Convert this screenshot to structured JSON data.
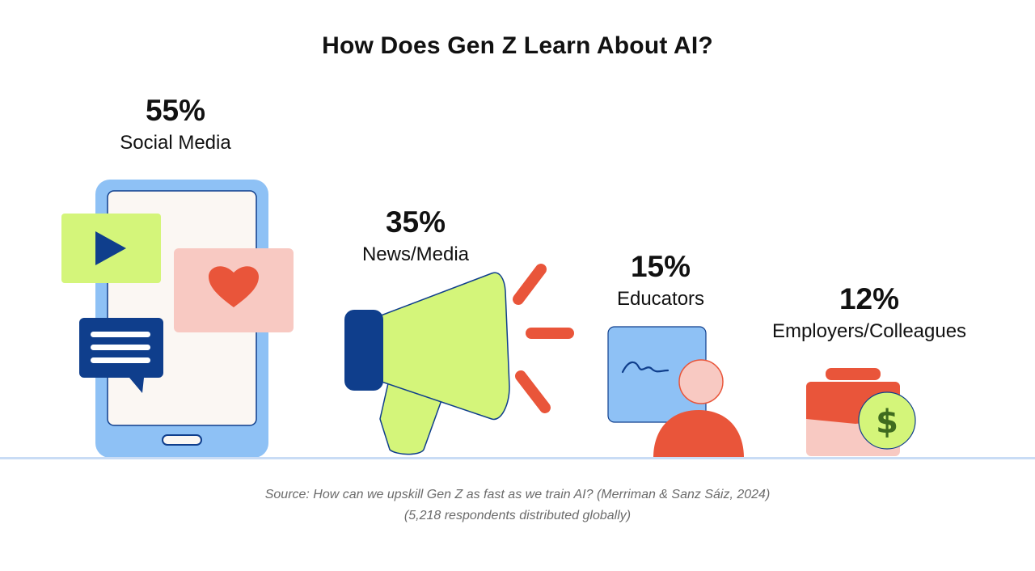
{
  "chart_data": {
    "type": "bar",
    "title": "How Does Gen Z Learn About AI?",
    "categories": [
      "Social Media",
      "News/Media",
      "Educators",
      "Employers/Colleagues"
    ],
    "values": [
      55,
      35,
      15,
      12
    ],
    "value_labels": [
      "55%",
      "35%",
      "15%",
      "12%"
    ],
    "unit": "%",
    "xlabel": "",
    "ylabel": "",
    "ylim": [
      0,
      60
    ]
  },
  "source": {
    "line1": "Source: How can we upskill Gen Z as fast as we train AI? (Merriman & Sanz Sáiz, 2024)",
    "line2": "(5,218 respondents distributed globally)"
  },
  "colors": {
    "blue_light": "#8ec1f5",
    "blue_dark": "#0f3e8c",
    "green": "#d4f57a",
    "pink": "#f8c9c2",
    "orange": "#e9553a",
    "cream": "#fbf7f3",
    "coin_text": "#3f6b1f"
  },
  "icons": [
    "phone-icon",
    "megaphone-icon",
    "educator-icon",
    "briefcase-icon"
  ]
}
